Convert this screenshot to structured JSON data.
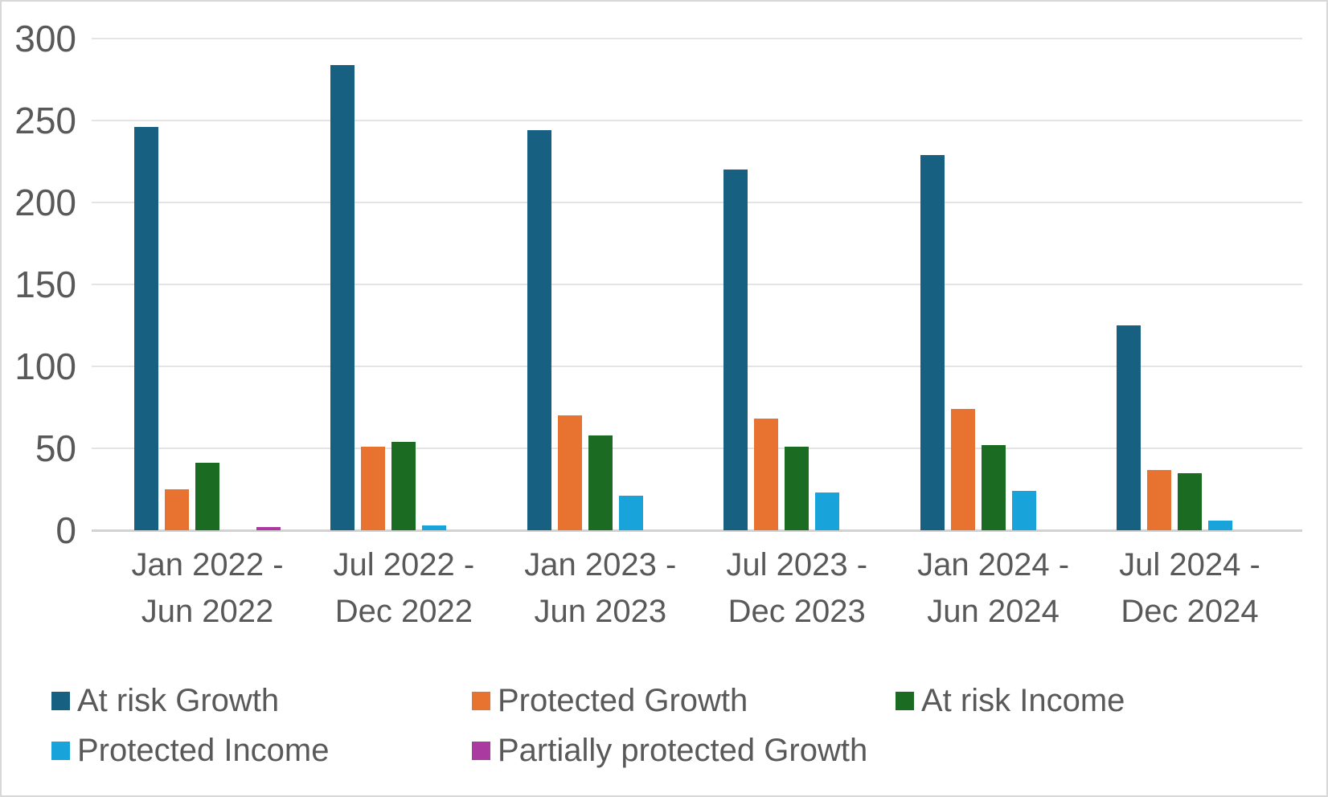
{
  "chart_data": {
    "type": "bar",
    "title": "",
    "xlabel": "",
    "ylabel": "",
    "ylim": [
      0,
      300
    ],
    "yticks": [
      0,
      50,
      100,
      150,
      200,
      250,
      300
    ],
    "grid": true,
    "legend_position": "bottom",
    "categories": [
      {
        "label": "Jan 2022 - Jun 2022",
        "line1": "Jan 2022 -",
        "line2": "Jun 2022"
      },
      {
        "label": "Jul 2022 - Dec 2022",
        "line1": "Jul 2022 -",
        "line2": "Dec 2022"
      },
      {
        "label": "Jan 2023 - Jun 2023",
        "line1": "Jan 2023 -",
        "line2": "Jun 2023"
      },
      {
        "label": "Jul 2023 - Dec 2023",
        "line1": "Jul 2023 -",
        "line2": "Dec 2023"
      },
      {
        "label": "Jan 2024 - Jun 2024",
        "line1": "Jan 2024 -",
        "line2": "Jun 2024"
      },
      {
        "label": "Jul 2024 - Dec 2024",
        "line1": "Jul 2024 -",
        "line2": "Dec 2024"
      }
    ],
    "series": [
      {
        "name": "At risk Growth",
        "color": "#176082",
        "values": [
          246,
          284,
          244,
          220,
          229,
          125
        ]
      },
      {
        "name": "Protected Growth",
        "color": "#E8722F",
        "values": [
          25,
          51,
          70,
          68,
          74,
          37
        ]
      },
      {
        "name": "At risk Income",
        "color": "#1C6B22",
        "values": [
          41,
          54,
          58,
          51,
          52,
          35
        ]
      },
      {
        "name": "Protected Income",
        "color": "#19A3DB",
        "values": [
          0,
          3,
          21,
          23,
          24,
          6
        ]
      },
      {
        "name": "Partially protected Growth",
        "color": "#AA3A9F",
        "values": [
          2,
          0,
          0,
          0,
          0,
          0
        ]
      }
    ],
    "colors": {
      "text": "#595959",
      "gridline": "#E4E4E4",
      "axis_line": "#D2D2D2",
      "background": "#FFFFFF",
      "border": "#D8D8D8"
    }
  }
}
